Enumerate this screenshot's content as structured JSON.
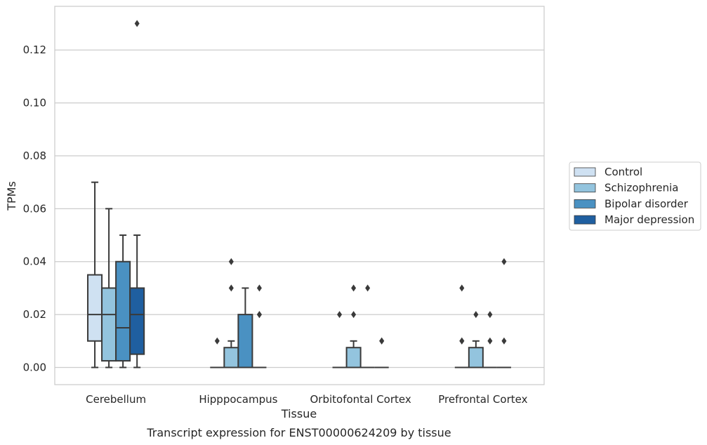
{
  "chart_data": {
    "type": "box",
    "caption": "Transcript expression for ENST00000624209 by tissue",
    "xlabel": "Tissue",
    "ylabel": "TPMs",
    "ylim": [
      -0.0065,
      0.1365
    ],
    "yticks": [
      0.0,
      0.02,
      0.04,
      0.06,
      0.08,
      0.1,
      0.12
    ],
    "ytick_labels": [
      "0.00",
      "0.02",
      "0.04",
      "0.06",
      "0.08",
      "0.10",
      "0.12"
    ],
    "grid": "horizontal",
    "legend_position": "right",
    "categories": [
      "Cerebellum",
      "Hipppocampus",
      "Orbitofontal Cortex",
      "Prefrontal Cortex"
    ],
    "series": [
      {
        "name": "Control",
        "color": "#cfe1f2",
        "boxes": [
          {
            "whisker_low": 0.0,
            "q1": 0.01,
            "median": 0.02,
            "q3": 0.035,
            "whisker_high": 0.07,
            "outliers": []
          },
          {
            "whisker_low": 0.0,
            "q1": 0.0,
            "median": 0.0,
            "q3": 0.0,
            "whisker_high": 0.0,
            "outliers": [
              0.01
            ]
          },
          {
            "whisker_low": 0.0,
            "q1": 0.0,
            "median": 0.0,
            "q3": 0.0,
            "whisker_high": 0.0,
            "outliers": [
              0.02
            ]
          },
          {
            "whisker_low": 0.0,
            "q1": 0.0,
            "median": 0.0,
            "q3": 0.0,
            "whisker_high": 0.0,
            "outliers": [
              0.01,
              0.01,
              0.03
            ]
          }
        ]
      },
      {
        "name": "Schizophrenia",
        "color": "#93c4de",
        "boxes": [
          {
            "whisker_low": 0.0,
            "q1": 0.0025,
            "median": 0.02,
            "q3": 0.03,
            "whisker_high": 0.06,
            "outliers": []
          },
          {
            "whisker_low": 0.0,
            "q1": 0.0,
            "median": 0.0,
            "q3": 0.0075,
            "whisker_high": 0.01,
            "outliers": [
              0.03,
              0.04
            ]
          },
          {
            "whisker_low": 0.0,
            "q1": 0.0,
            "median": 0.0,
            "q3": 0.0075,
            "whisker_high": 0.01,
            "outliers": [
              0.02,
              0.03
            ]
          },
          {
            "whisker_low": 0.0,
            "q1": 0.0,
            "median": 0.0,
            "q3": 0.0075,
            "whisker_high": 0.01,
            "outliers": [
              0.02
            ]
          }
        ]
      },
      {
        "name": "Bipolar disorder",
        "color": "#4a91c2",
        "boxes": [
          {
            "whisker_low": 0.0,
            "q1": 0.0025,
            "median": 0.015,
            "q3": 0.04,
            "whisker_high": 0.05,
            "outliers": []
          },
          {
            "whisker_low": 0.0,
            "q1": 0.0,
            "median": 0.0,
            "q3": 0.02,
            "whisker_high": 0.03,
            "outliers": []
          },
          {
            "whisker_low": 0.0,
            "q1": 0.0,
            "median": 0.0,
            "q3": 0.0,
            "whisker_high": 0.0,
            "outliers": [
              0.03
            ]
          },
          {
            "whisker_low": 0.0,
            "q1": 0.0,
            "median": 0.0,
            "q3": 0.0,
            "whisker_high": 0.0,
            "outliers": [
              0.01,
              0.02
            ]
          }
        ]
      },
      {
        "name": "Major depression",
        "color": "#1f5fa0",
        "boxes": [
          {
            "whisker_low": 0.0,
            "q1": 0.005,
            "median": 0.02,
            "q3": 0.03,
            "whisker_high": 0.05,
            "outliers": [
              0.13
            ]
          },
          {
            "whisker_low": 0.0,
            "q1": 0.0,
            "median": 0.0,
            "q3": 0.0,
            "whisker_high": 0.0,
            "outliers": [
              0.02,
              0.02,
              0.03
            ]
          },
          {
            "whisker_low": 0.0,
            "q1": 0.0,
            "median": 0.0,
            "q3": 0.0,
            "whisker_high": 0.0,
            "outliers": [
              0.01,
              0.01
            ]
          },
          {
            "whisker_low": 0.0,
            "q1": 0.0,
            "median": 0.0,
            "q3": 0.0,
            "whisker_high": 0.0,
            "outliers": [
              0.01,
              0.04
            ]
          }
        ]
      }
    ]
  }
}
